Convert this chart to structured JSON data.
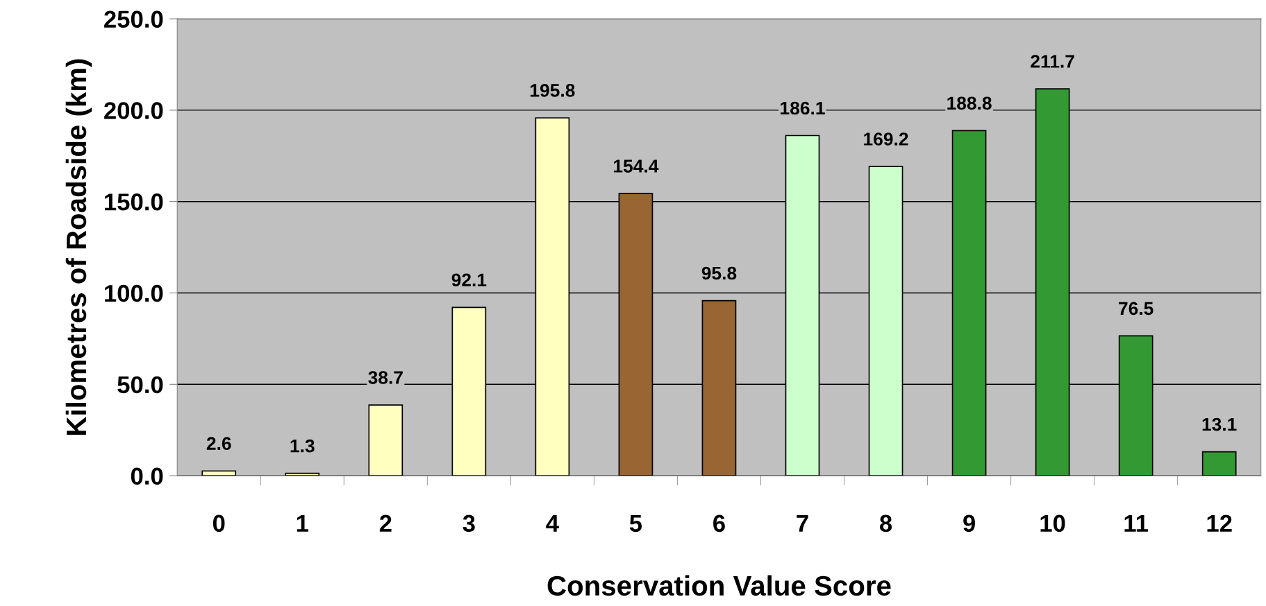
{
  "chart_data": {
    "type": "bar",
    "xlabel": "Conservation Value Score",
    "ylabel": "Kilometres of Roadside (km)",
    "categories": [
      "0",
      "1",
      "2",
      "3",
      "4",
      "5",
      "6",
      "7",
      "8",
      "9",
      "10",
      "11",
      "12"
    ],
    "values": [
      2.6,
      1.3,
      38.7,
      92.1,
      195.8,
      154.4,
      95.8,
      186.1,
      169.2,
      188.8,
      211.7,
      76.5,
      13.1
    ],
    "colors": [
      "#ffffc0",
      "#ffffc0",
      "#ffffc0",
      "#ffffc0",
      "#ffffc0",
      "#996633",
      "#996633",
      "#ccffcc",
      "#ccffcc",
      "#339933",
      "#339933",
      "#339933",
      "#339933"
    ],
    "value_labels": [
      "2.6",
      "1.3",
      "38.7",
      "92.1",
      "195.8",
      "154.4",
      "95.8",
      "186.1",
      "169.2",
      "188.8",
      "211.7",
      "76.5",
      "13.1"
    ],
    "ylim": [
      0,
      250
    ],
    "yticks": [
      {
        "value": 0,
        "label": "0.0"
      },
      {
        "value": 50,
        "label": "50.0"
      },
      {
        "value": 100,
        "label": "100.0"
      },
      {
        "value": 150,
        "label": "150.0"
      },
      {
        "value": 200,
        "label": "200.0"
      },
      {
        "value": 250,
        "label": "250.0"
      }
    ],
    "grid": "y",
    "legend": false
  }
}
